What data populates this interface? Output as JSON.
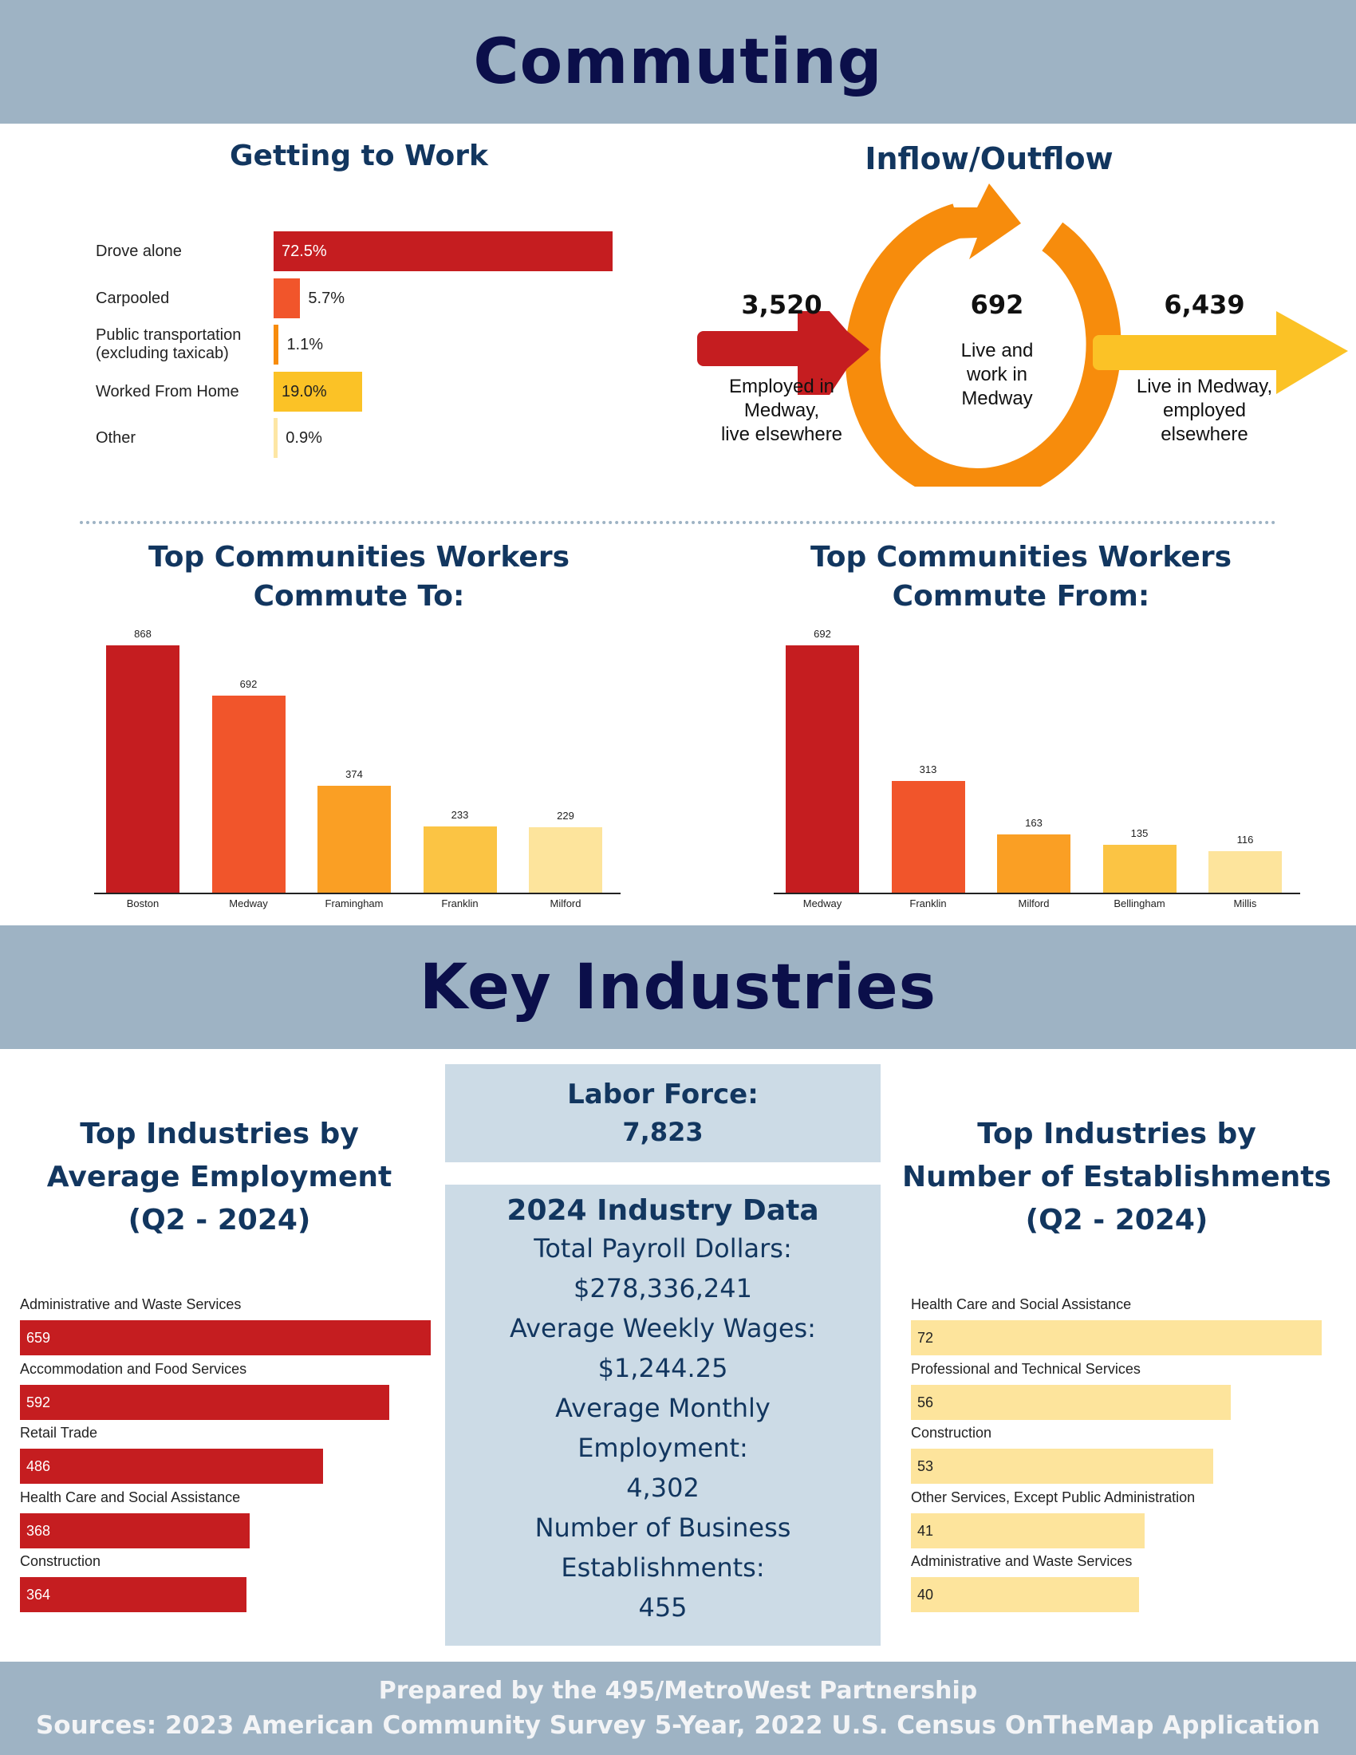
{
  "header": {
    "title": "Commuting"
  },
  "getting_to_work": {
    "title": "Getting to Work",
    "items": [
      {
        "label": "Drove alone",
        "label2": "",
        "value": 72.5,
        "display": "72.5%",
        "color": "#c51d20",
        "inside": true,
        "text_color": "#ffffff"
      },
      {
        "label": "Carpooled",
        "label2": "",
        "value": 5.7,
        "display": "5.7%",
        "color": "#f1552b",
        "inside": false,
        "text_color": "#222222"
      },
      {
        "label": "Public transportation",
        "label2": "(excluding taxicab)",
        "value": 1.1,
        "display": "1.1%",
        "color": "#f78c0c",
        "inside": false,
        "text_color": "#222222"
      },
      {
        "label": "Worked From Home",
        "label2": "",
        "value": 19.0,
        "display": "19.0%",
        "color": "#fbc226",
        "inside": true,
        "text_color": "#222222"
      },
      {
        "label": "Other",
        "label2": "",
        "value": 0.9,
        "display": "0.9%",
        "color": "#fde6a4",
        "inside": false,
        "text_color": "#222222"
      }
    ]
  },
  "inflow_outflow": {
    "title": "Inflow/Outflow",
    "inflow": {
      "value": "3,520",
      "lines": [
        "Employed in",
        "Medway,",
        "live elsewhere"
      ]
    },
    "internal": {
      "value": "692",
      "lines": [
        "Live and",
        "work in",
        "Medway"
      ]
    },
    "outflow": {
      "value": "6,439",
      "lines": [
        "Live in Medway,",
        "employed",
        "elsewhere"
      ]
    },
    "colors": {
      "inflow": "#c51d20",
      "ring": "#f78c0c",
      "outflow": "#fbc226"
    }
  },
  "commute_to": {
    "title_lines": [
      "Top Communities Workers",
      "Commute To:"
    ]
  },
  "commute_from": {
    "title_lines": [
      "Top Communities Workers",
      "Commute From:"
    ]
  },
  "key_industries": {
    "title": "Key Industries"
  },
  "employment": {
    "title_lines": [
      "Top Industries by",
      "Average Employment",
      "(Q2 - 2024)"
    ],
    "items": [
      {
        "label": "Administrative and Waste Services",
        "value": 659
      },
      {
        "label": "Accommodation and Food Services",
        "value": 592
      },
      {
        "label": "Retail Trade",
        "value": 486
      },
      {
        "label": "Health Care and Social Assistance",
        "value": 368
      },
      {
        "label": "Construction",
        "value": 364
      }
    ],
    "color": "#c51d20"
  },
  "labor_force": {
    "label": "Labor Force:",
    "value": "7,823"
  },
  "industry_data": {
    "title": "2024 Industry Data",
    "lines": [
      "Total Payroll Dollars:",
      "$278,336,241",
      "Average Weekly Wages:",
      "$1,244.25",
      "Average Monthly",
      "Employment:",
      "4,302",
      "Number of Business",
      "Establishments:",
      "455"
    ]
  },
  "establishments": {
    "title_lines": [
      "Top Industries by",
      "Number of Establishments",
      "(Q2 - 2024)"
    ],
    "items": [
      {
        "label": "Health Care and Social Assistance",
        "value": 72
      },
      {
        "label": "Professional and Technical Services",
        "value": 56
      },
      {
        "label": "Construction",
        "value": 53
      },
      {
        "label": "Other Services, Except Public Administration",
        "value": 41
      },
      {
        "label": "Administrative and Waste Services",
        "value": 40
      }
    ],
    "color": "#fde49c"
  },
  "footer": {
    "line1": "Prepared by the 495/MetroWest Partnership",
    "line2": "Sources: 2023 American Community Survey 5-Year, 2022 U.S. Census OnTheMap Application"
  },
  "chart_data": [
    {
      "type": "bar",
      "orientation": "horizontal",
      "title": "Getting to Work",
      "categories": [
        "Drove alone",
        "Carpooled",
        "Public transportation (excluding taxicab)",
        "Worked From Home",
        "Other"
      ],
      "values": [
        72.5,
        5.7,
        1.1,
        19.0,
        0.9
      ],
      "unit": "%"
    },
    {
      "type": "bar",
      "title": "Top Communities Workers Commute To:",
      "categories": [
        "Boston",
        "Medway",
        "Framingham",
        "Franklin",
        "Milford"
      ],
      "values": [
        868,
        692,
        374,
        233,
        229
      ],
      "colors": [
        "#c51d20",
        "#f1552b",
        "#fa9f24",
        "#fbc444",
        "#fde49c"
      ]
    },
    {
      "type": "bar",
      "title": "Top Communities Workers Commute From:",
      "categories": [
        "Medway",
        "Franklin",
        "Milford",
        "Bellingham",
        "Millis"
      ],
      "values": [
        692,
        313,
        163,
        135,
        116
      ],
      "colors": [
        "#c51d20",
        "#f1552b",
        "#fa9f24",
        "#fbc444",
        "#fde49c"
      ]
    },
    {
      "type": "bar",
      "orientation": "horizontal",
      "title": "Top Industries by Average Employment (Q2 - 2024)",
      "categories": [
        "Administrative and Waste Services",
        "Accommodation and Food Services",
        "Retail Trade",
        "Health Care and Social Assistance",
        "Construction"
      ],
      "values": [
        659,
        592,
        486,
        368,
        364
      ]
    },
    {
      "type": "bar",
      "orientation": "horizontal",
      "title": "Top Industries by Number of Establishments (Q2 - 2024)",
      "categories": [
        "Health Care and Social Assistance",
        "Professional and Technical Services",
        "Construction",
        "Other Services, Except Public Administration",
        "Administrative and Waste Services"
      ],
      "values": [
        72,
        56,
        53,
        41,
        40
      ]
    }
  ]
}
